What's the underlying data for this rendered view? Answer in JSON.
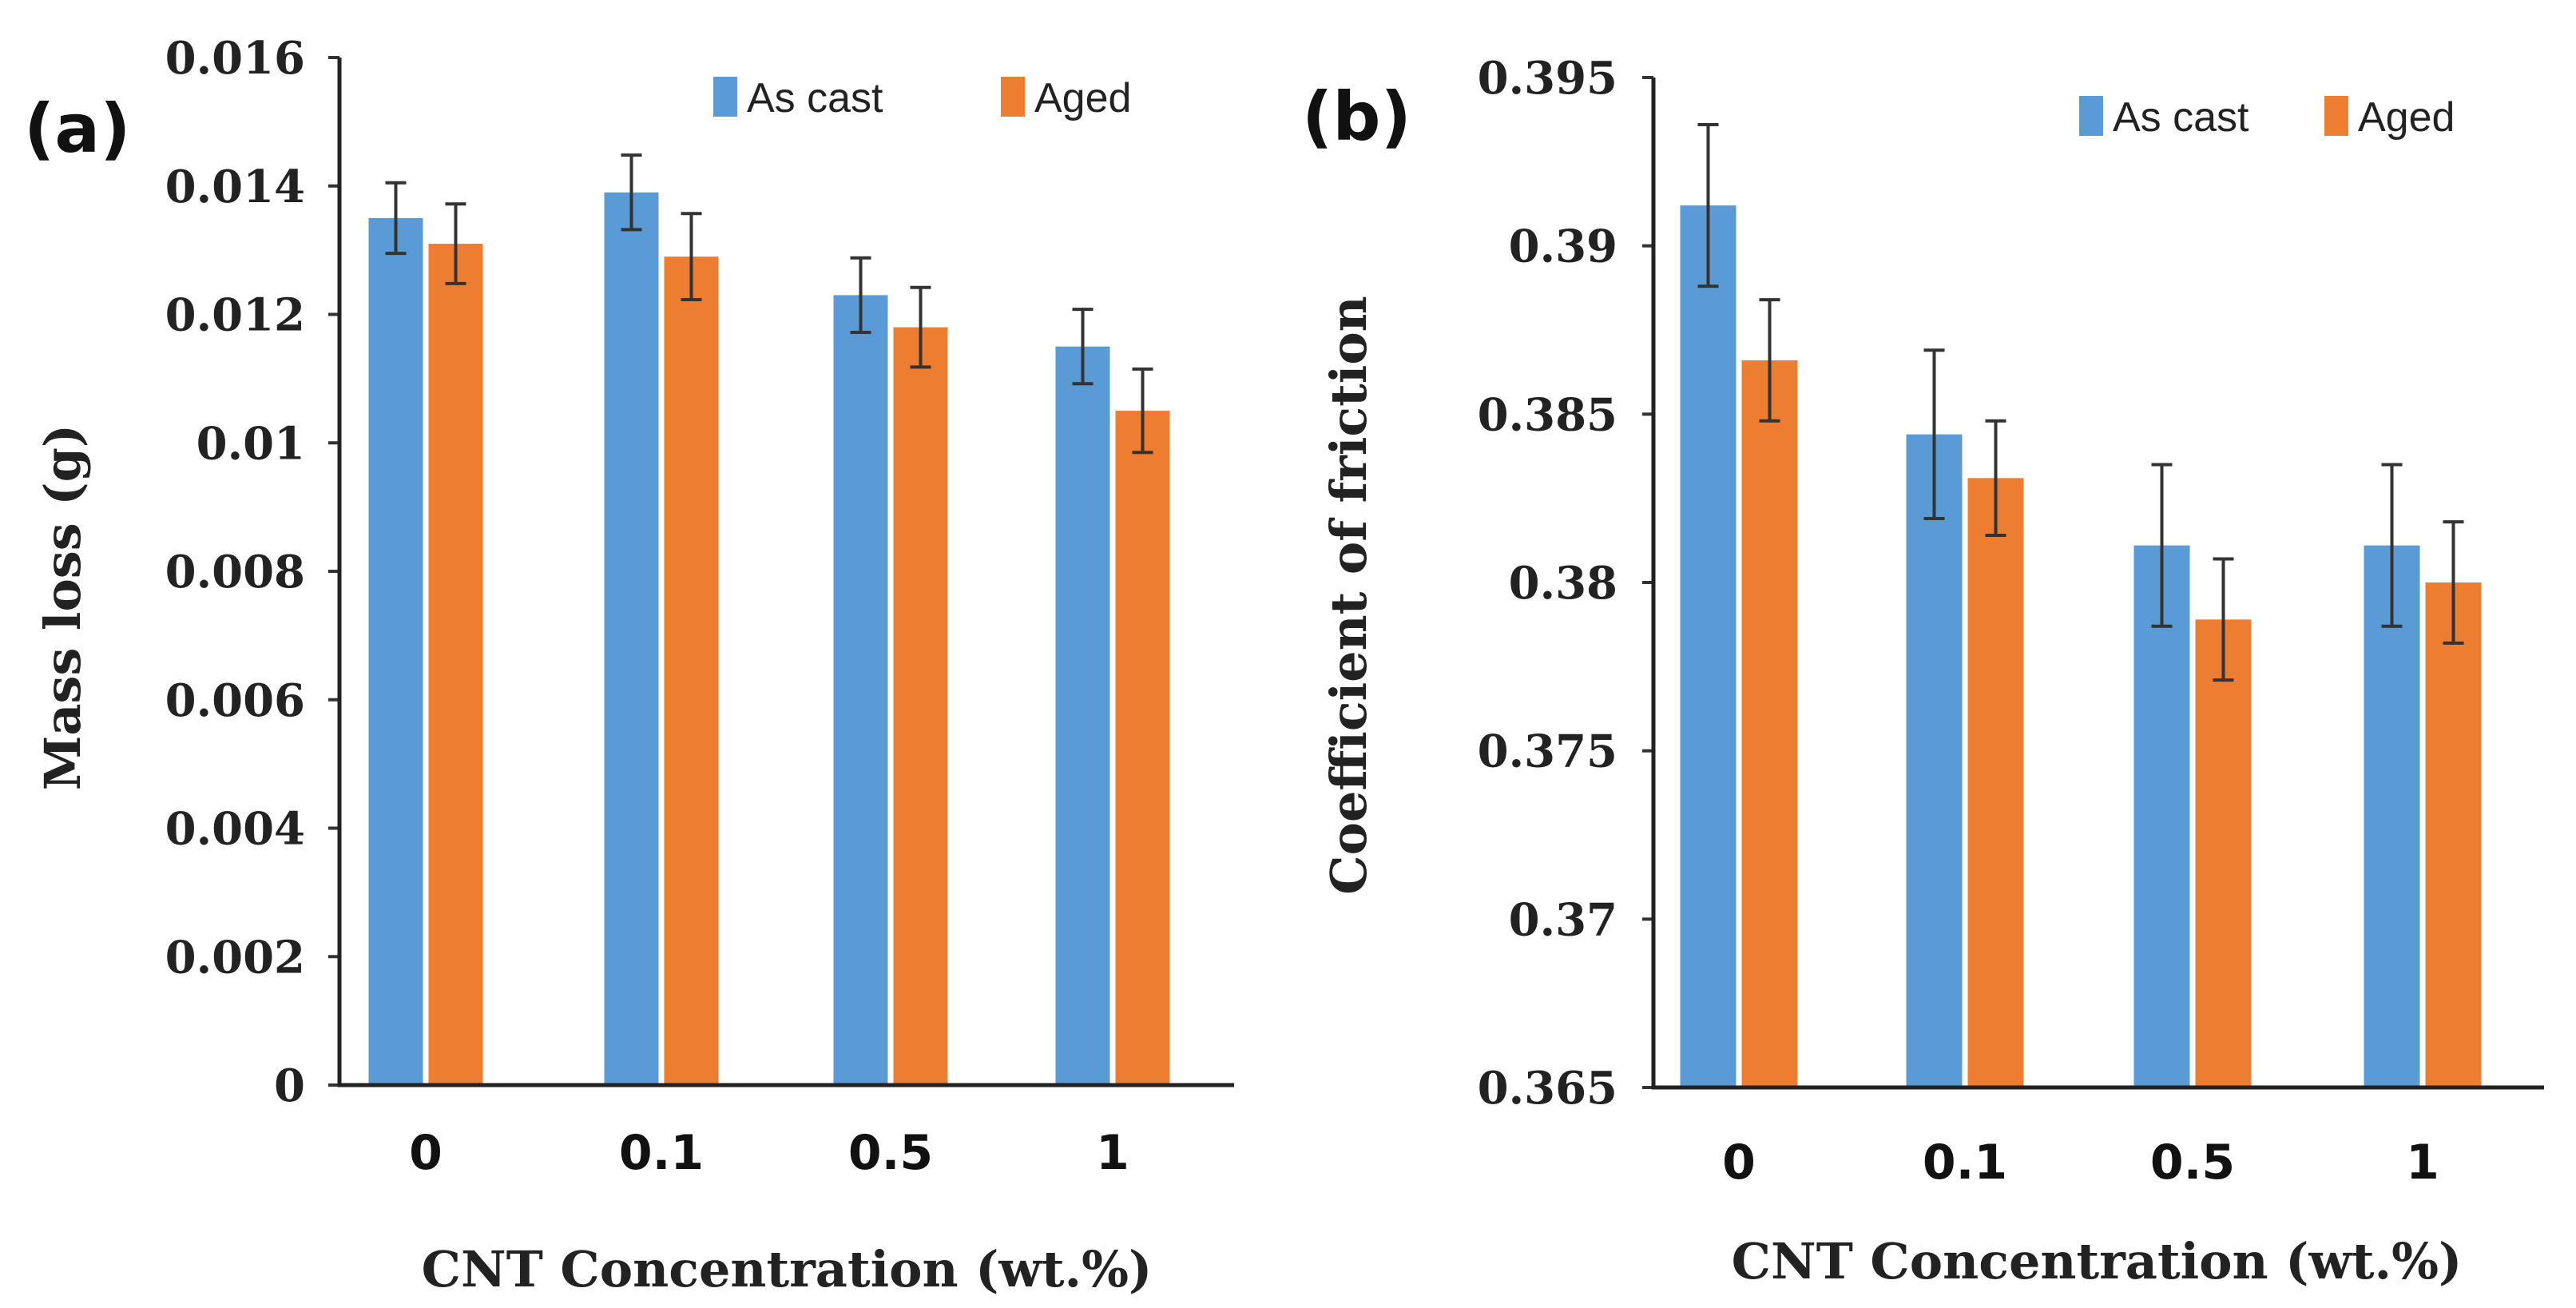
{
  "colors": {
    "as_cast": "#5B9BD5",
    "aged": "#ED7D31"
  },
  "chart_data": [
    {
      "panel": "(a)",
      "type": "bar",
      "xlabel": "CNT Concentration (wt.%)",
      "ylabel": "Mass loss (g)",
      "categories": [
        "0",
        "0.1",
        "0.5",
        "1"
      ],
      "ylim": [
        0,
        0.016
      ],
      "yticks": [
        0,
        0.002,
        0.004,
        0.006,
        0.008,
        0.01,
        0.012,
        0.014,
        0.016
      ],
      "ytick_labels": [
        "0",
        "0.002",
        "0.004",
        "0.006",
        "0.008",
        "0.01",
        "0.012",
        "0.014",
        "0.016"
      ],
      "legend": [
        "As cast",
        "Aged"
      ],
      "legend_position": "top-right",
      "series": [
        {
          "name": "As cast",
          "values": [
            0.0135,
            0.0139,
            0.0123,
            0.0115
          ],
          "errors": [
            0.00055,
            0.00058,
            0.00058,
            0.00058
          ]
        },
        {
          "name": "Aged",
          "values": [
            0.0131,
            0.0129,
            0.0118,
            0.0105
          ],
          "errors": [
            0.00062,
            0.00067,
            0.00062,
            0.00065
          ]
        }
      ]
    },
    {
      "panel": "(b)",
      "type": "bar",
      "xlabel": "CNT Concentration (wt.%)",
      "ylabel": "Coefficient of friction",
      "categories": [
        "0",
        "0.1",
        "0.5",
        "1"
      ],
      "ylim": [
        0.365,
        0.395
      ],
      "yticks": [
        0.365,
        0.37,
        0.375,
        0.38,
        0.385,
        0.39,
        0.395
      ],
      "ytick_labels": [
        "0.365",
        "0.37",
        "0.375",
        "0.38",
        "0.385",
        "0.39",
        "0.395"
      ],
      "legend": [
        "As cast",
        "Aged"
      ],
      "legend_position": "top-right",
      "series": [
        {
          "name": "As cast",
          "values": [
            0.3912,
            0.3844,
            0.3811,
            0.3811
          ],
          "errors": [
            0.0024,
            0.0025,
            0.0024,
            0.0024
          ]
        },
        {
          "name": "Aged",
          "values": [
            0.3866,
            0.3831,
            0.3789,
            0.38
          ],
          "errors": [
            0.0018,
            0.0017,
            0.0018,
            0.0018
          ]
        }
      ]
    }
  ]
}
